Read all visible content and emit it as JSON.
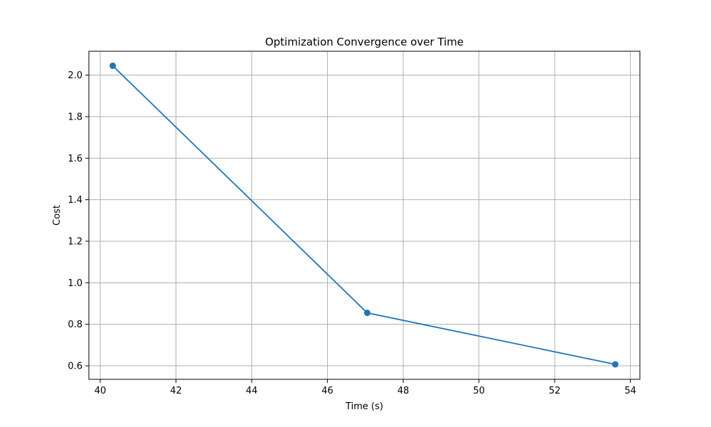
{
  "chart_data": {
    "type": "line",
    "title": "Optimization Convergence over Time",
    "xlabel": "Time (s)",
    "ylabel": "Cost",
    "xlim": [
      39.7,
      54.25
    ],
    "ylim": [
      0.535,
      2.115
    ],
    "xticks": [
      40,
      42,
      44,
      46,
      48,
      50,
      52,
      54
    ],
    "yticks": [
      0.6,
      0.8,
      1.0,
      1.2,
      1.4,
      1.6,
      1.8,
      2.0
    ],
    "xtick_labels": [
      "40",
      "42",
      "44",
      "46",
      "48",
      "50",
      "52",
      "54"
    ],
    "ytick_labels": [
      "0.6",
      "0.8",
      "1.0",
      "1.2",
      "1.4",
      "1.6",
      "1.8",
      "2.0"
    ],
    "grid": true,
    "legend": false,
    "series": [
      {
        "x": [
          40.33,
          47.05,
          53.6
        ],
        "y": [
          2.045,
          0.855,
          0.607
        ],
        "color": "#1f77b4",
        "marker": "circle"
      }
    ]
  }
}
